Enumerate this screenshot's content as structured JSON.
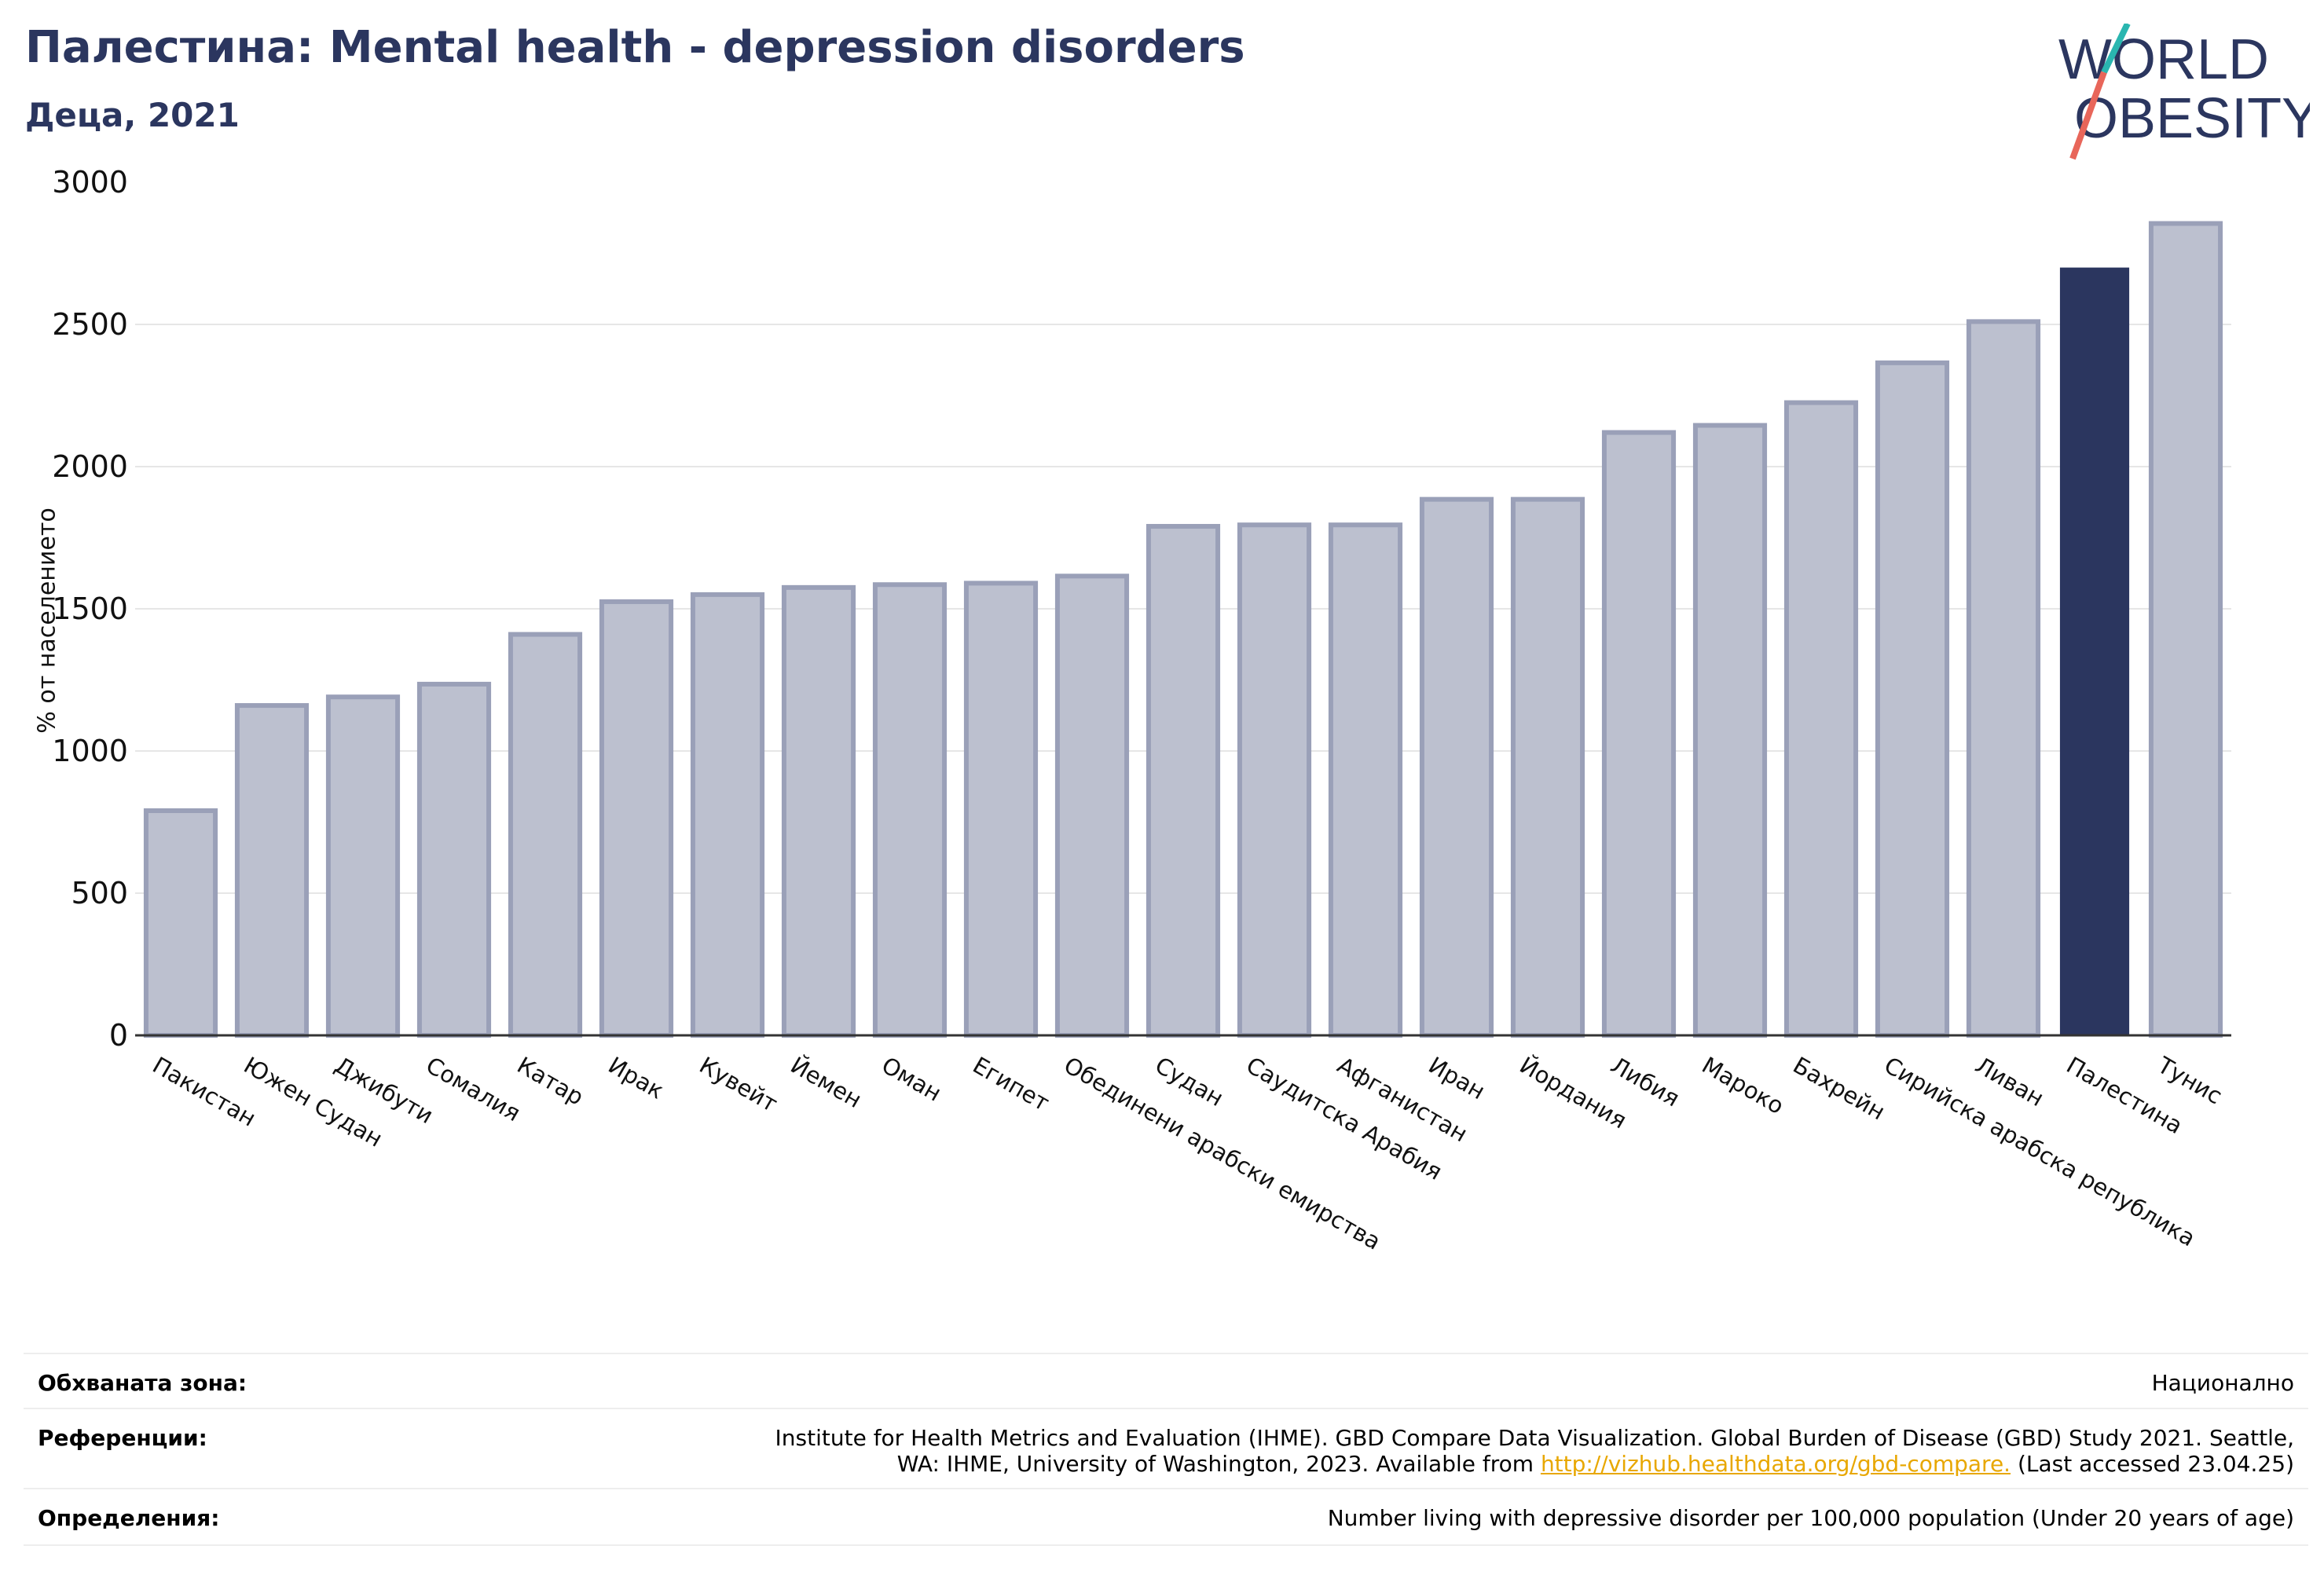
{
  "header": {
    "title": "Палестина: Mental health - depression disorders",
    "subtitle": "Деца, 2021"
  },
  "logo": {
    "line1": "WORLD",
    "line2": "OBESITY",
    "colors": {
      "text": "#2b365f",
      "slash_top": "#2ab6b0",
      "slash_bottom": "#e8665a"
    }
  },
  "chart_data": {
    "type": "bar",
    "title": "",
    "xlabel": "",
    "ylabel": "% от населението",
    "ylim": [
      0,
      3000
    ],
    "yticks": [
      0,
      500,
      1000,
      1500,
      2000,
      2500,
      3000
    ],
    "grid": true,
    "highlight": "Палестина",
    "colors": {
      "bar": "#bcc0cf",
      "bar_edge": "#9aa0b8",
      "highlight": "#2b365f",
      "grid": "#e6e6e6",
      "axis": "#333333"
    },
    "categories": [
      "Пакистан",
      "Южен Судан",
      "Джибути",
      "Сомалия",
      "Катар",
      "Ирак",
      "Кувейт",
      "Йемен",
      "Оман",
      "Египет",
      "Обединени арабски емирства",
      "Судан",
      "Саудитска Арабия",
      "Афганистан",
      "Иран",
      "Йордания",
      "Либия",
      "Мароко",
      "Бахрейн",
      "Сирийска арабска република",
      "Ливан",
      "Палестина",
      "Тунис"
    ],
    "values": [
      790,
      1160,
      1190,
      1235,
      1410,
      1525,
      1550,
      1575,
      1585,
      1590,
      1615,
      1790,
      1795,
      1795,
      1885,
      1885,
      2120,
      2145,
      2225,
      2365,
      2510,
      2700,
      2855
    ]
  },
  "info": {
    "coverage_label": "Обхваната зона:",
    "coverage_value": "Национално",
    "references_label": "Референции:",
    "references_line1": "Institute for Health Metrics and Evaluation (IHME). GBD Compare Data Visualization. Global Burden of Disease (GBD) Study 2021. Seattle,",
    "references_line2_pre": "WA: IHME, University of Washington, 2023. Available from ",
    "references_link": "http://vizhub.healthdata.org/gbd-compare.",
    "references_line2_post": " (Last accessed 23.04.25)",
    "definitions_label": "Определения:",
    "definitions_value": "Number living with depressive disorder per 100,000 population (Under 20 years of age)"
  }
}
